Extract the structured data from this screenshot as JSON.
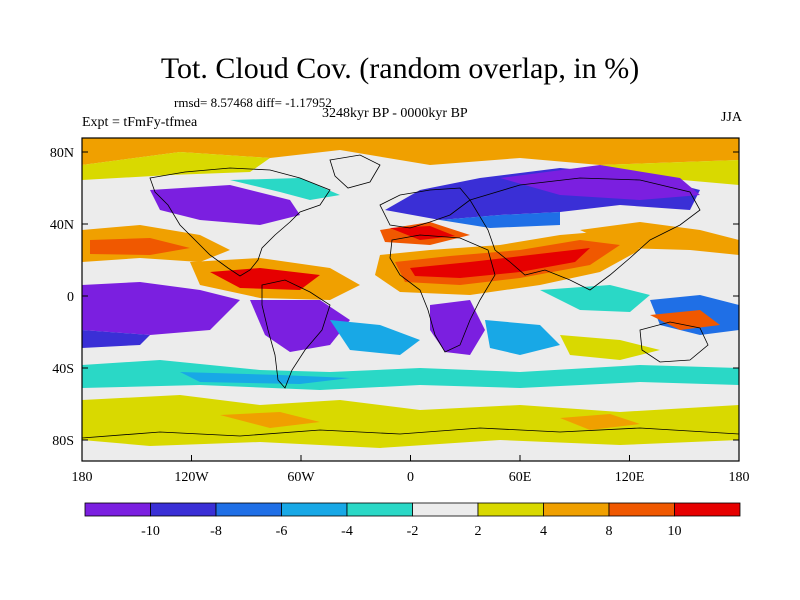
{
  "title": "Tot. Cloud Cov. (random overlap, in %)",
  "stats_line": "rmsd= 8.57468 diff= -1.17952",
  "period": "3248kyr BP - 0000kyr BP",
  "experiment": "Expt = tFmFy-tfmea",
  "season": "JJA",
  "axes": {
    "y_ticks": [
      "80N",
      "40N",
      "0",
      "40S",
      "80S"
    ],
    "x_ticks": [
      "180",
      "120W",
      "60W",
      "0",
      "60E",
      "120E",
      "180"
    ]
  },
  "colorbar": {
    "labels": [
      "-10",
      "-8",
      "-6",
      "-4",
      "-2",
      "2",
      "4",
      "8",
      "10"
    ],
    "colors": [
      "#7b1fe0",
      "#3a2fd6",
      "#1f6fe6",
      "#18a8e6",
      "#2ad8c6",
      "#ececec",
      "#d9d900",
      "#f0a000",
      "#f05800",
      "#e60000"
    ]
  },
  "field_colors": {
    "strong_decrease": "#7b1fe0",
    "decrease": "#3a2fd6",
    "moderate_decrease": "#1f6fe6",
    "slight_decrease": "#18a8e6",
    "small_decrease": "#2ad8c6",
    "neutral": "#ececec",
    "small_increase": "#d9d900",
    "increase": "#f0a000",
    "strong_increase": "#f05800",
    "max_increase": "#e60000"
  }
}
